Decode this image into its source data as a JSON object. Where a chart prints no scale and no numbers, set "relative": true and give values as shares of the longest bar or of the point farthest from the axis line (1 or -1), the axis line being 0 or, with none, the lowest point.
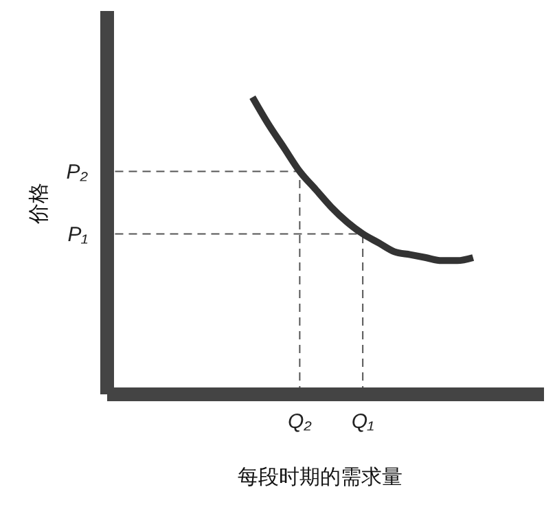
{
  "chart_data": {
    "type": "line",
    "relative": true,
    "xlabel": "每段时期的需求量",
    "ylabel": "价格",
    "categories": [
      null,
      null,
      null,
      null,
      null,
      null,
      null,
      null,
      null,
      null,
      null,
      null,
      "Q₂",
      null,
      null,
      null,
      "Q₁",
      null,
      null,
      null,
      null,
      null,
      null,
      null,
      null,
      null,
      null,
      null
    ],
    "series": [
      {
        "color": "#333333",
        "values": [
          null,
          null,
          null,
          null,
          null,
          null,
          null,
          null,
          null,
          1,
          0.91,
          0.83,
          0.75,
          0.69,
          0.63,
          0.58,
          0.54,
          0.51,
          0.48,
          0.47,
          0.46,
          0.45,
          0.45,
          0.46,
          null,
          null,
          null,
          null
        ]
      }
    ],
    "ref_lines": [
      {
        "axis": "y",
        "value": 0.75,
        "label": "P₂",
        "line_style": "dashed"
      },
      {
        "axis": "y",
        "value": 0.54,
        "label": "P₁",
        "line_style": "dashed"
      },
      {
        "axis": "x",
        "value": "Q₂",
        "line_style": "dashed"
      },
      {
        "axis": "x",
        "value": "Q₁",
        "line_style": "dashed"
      }
    ],
    "marker": "none",
    "line_style": "solid"
  }
}
